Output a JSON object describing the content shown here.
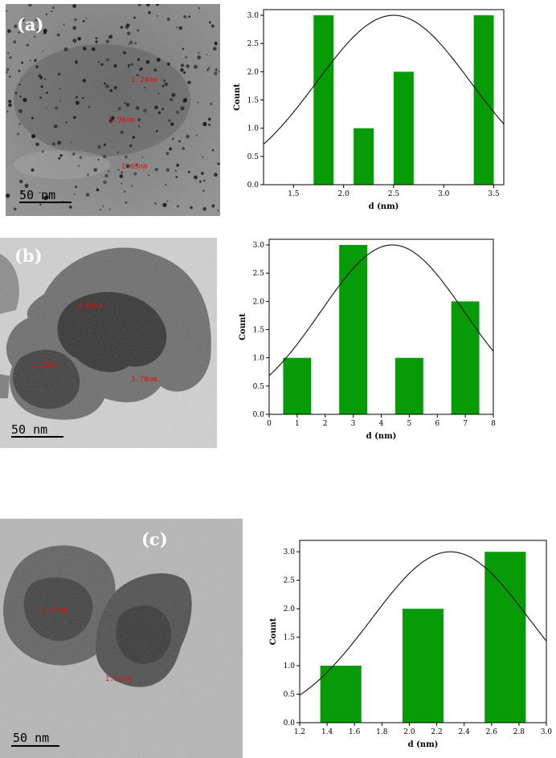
{
  "panels": [
    {
      "label": "(a)",
      "scale_bar": "50 nm",
      "measurements": [
        "1.24nm",
        "1.98nm",
        "1.69nm"
      ],
      "chart_data": {
        "type": "bar",
        "x": [
          1.8,
          2.2,
          2.6,
          3.4
        ],
        "values": [
          3,
          1,
          2,
          3
        ],
        "bar_width": 0.2,
        "fit_curve": {
          "type": "gaussian",
          "peak_x": 2.5,
          "peak_y": 3.0
        },
        "xlabel": "d (nm)",
        "ylabel": "Count",
        "xlim": [
          1.2,
          3.6
        ],
        "ylim": [
          0,
          3.1
        ],
        "xticks": [
          "1.5",
          "2.0",
          "2.5",
          "3.0",
          "3.5"
        ],
        "yticks": [
          "0.0",
          "0.5",
          "1.0",
          "1.5",
          "2.0",
          "2.5",
          "3.0"
        ],
        "bar_color": "#079b07"
      }
    },
    {
      "label": "(b)",
      "scale_bar": "50 nm",
      "measurements": [
        "6.80nm",
        "4.08nm",
        "3.70nm"
      ],
      "chart_data": {
        "type": "bar",
        "x": [
          1,
          3,
          5,
          7
        ],
        "values": [
          1,
          3,
          1,
          2
        ],
        "bar_width": 1,
        "fit_curve": {
          "type": "gaussian",
          "peak_x": 4.4,
          "peak_y": 3.0
        },
        "xlabel": "d (nm)",
        "ylabel": "Count",
        "xlim": [
          0,
          8
        ],
        "ylim": [
          0,
          3.1
        ],
        "xticks": [
          "0",
          "1",
          "2",
          "3",
          "4",
          "5",
          "6",
          "7",
          "8"
        ],
        "yticks": [
          "0.0",
          "0.5",
          "1.0",
          "1.5",
          "2.0",
          "2.5",
          "3.0"
        ],
        "bar_color": "#079b07"
      }
    },
    {
      "label": "(c)",
      "scale_bar": "50 nm",
      "measurements": [
        "2.87nm",
        "1.32nm"
      ],
      "chart_data": {
        "type": "bar",
        "x": [
          1.5,
          2.1,
          2.7
        ],
        "values": [
          1,
          2,
          3
        ],
        "bar_width": 0.3,
        "fit_curve": {
          "type": "gaussian",
          "peak_x": 2.3,
          "peak_y": 3.0
        },
        "xlabel": "d (nm)",
        "ylabel": "Count",
        "xlim": [
          1.2,
          3.0
        ],
        "ylim": [
          0,
          3.2
        ],
        "xticks": [
          "1.2",
          "1.4",
          "1.6",
          "1.8",
          "2.0",
          "2.2",
          "2.4",
          "2.6",
          "2.8",
          "3.0"
        ],
        "yticks": [
          "0.0",
          "0.5",
          "1.0",
          "1.5",
          "2.0",
          "2.5",
          "3.0"
        ],
        "bar_color": "#079b07"
      }
    }
  ]
}
